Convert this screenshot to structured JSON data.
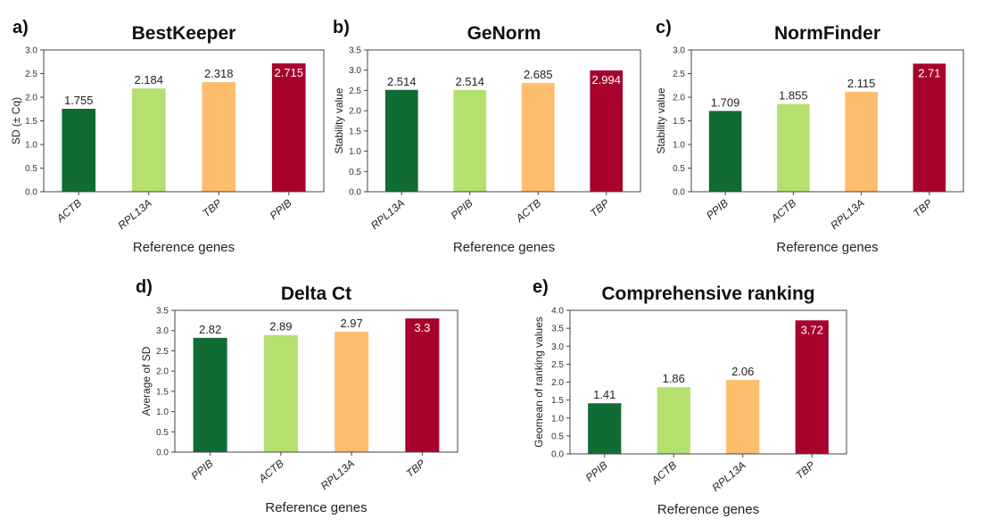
{
  "colors": {
    "rank1": "#116b35",
    "rank2": "#b5e06f",
    "rank3": "#fdbd6c",
    "rank4": "#a6022b"
  },
  "chart_data": [
    {
      "panel": "a)",
      "type": "bar",
      "title": "BestKeeper",
      "xlabel": "Reference genes",
      "ylabel": "SD (± Cq)",
      "ylim": [
        0,
        3.0
      ],
      "yticks": [
        "0.0",
        "0.5",
        "1.0",
        "1.5",
        "2.0",
        "2.5",
        "3.0"
      ],
      "categories": [
        "ACTB",
        "RPL13A",
        "TBP",
        "PPIB"
      ],
      "values": [
        1.755,
        2.184,
        2.318,
        2.715
      ],
      "labels": [
        "1.755",
        "2.184",
        "2.318",
        "2.715"
      ]
    },
    {
      "panel": "b)",
      "type": "bar",
      "title": "GeNorm",
      "xlabel": "Reference genes",
      "ylabel": "Stability value",
      "ylim": [
        0,
        3.5
      ],
      "yticks": [
        "0.0",
        "0.5",
        "1.0",
        "1.5",
        "2.0",
        "2.5",
        "3.0",
        "3.5"
      ],
      "categories": [
        "RPL13A",
        "PPIB",
        "ACTB",
        "TBP"
      ],
      "values": [
        2.514,
        2.514,
        2.685,
        2.994
      ],
      "labels": [
        "2.514",
        "2.514",
        "2.685",
        "2.994"
      ]
    },
    {
      "panel": "c)",
      "type": "bar",
      "title": "NormFinder",
      "xlabel": "Reference genes",
      "ylabel": "Stability value",
      "ylim": [
        0,
        3.0
      ],
      "yticks": [
        "0.0",
        "0.5",
        "1.0",
        "1.5",
        "2.0",
        "2.5",
        "3.0"
      ],
      "categories": [
        "PPIB",
        "ACTB",
        "RPL13A",
        "TBP"
      ],
      "values": [
        1.709,
        1.855,
        2.115,
        2.71
      ],
      "labels": [
        "1.709",
        "1.855",
        "2.115",
        "2.71"
      ]
    },
    {
      "panel": "d)",
      "type": "bar",
      "title": "Delta Ct",
      "xlabel": "Reference genes",
      "ylabel": "Average of SD",
      "ylim": [
        0,
        3.5
      ],
      "yticks": [
        "0.0",
        "0.5",
        "1.0",
        "1.5",
        "2.0",
        "2.5",
        "3.0",
        "3.5"
      ],
      "categories": [
        "PPIB",
        "ACTB",
        "RPL13A",
        "TBP"
      ],
      "values": [
        2.82,
        2.89,
        2.97,
        3.3
      ],
      "labels": [
        "2.82",
        "2.89",
        "2.97",
        "3.3"
      ]
    },
    {
      "panel": "e)",
      "type": "bar",
      "title": "Comprehensive ranking",
      "xlabel": "Reference genes",
      "ylabel": "Geomean of ranking values",
      "ylim": [
        0,
        4.0
      ],
      "yticks": [
        "0.0",
        "0.5",
        "1.0",
        "1.5",
        "2.0",
        "2.5",
        "3.0",
        "3.5",
        "4.0"
      ],
      "categories": [
        "PPIB",
        "ACTB",
        "RPL13A",
        "TBP"
      ],
      "values": [
        1.41,
        1.86,
        2.06,
        3.72
      ],
      "labels": [
        "1.41",
        "1.86",
        "2.06",
        "3.72"
      ]
    }
  ]
}
